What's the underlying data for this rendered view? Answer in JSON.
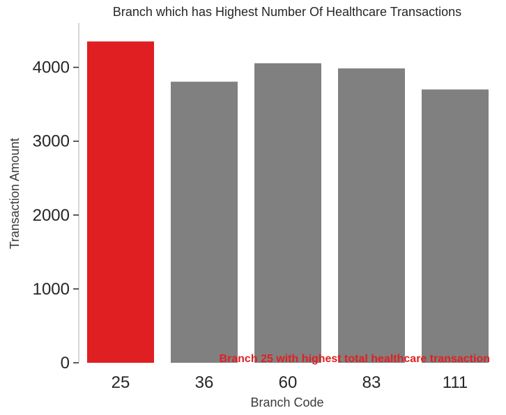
{
  "chart_data": {
    "type": "bar",
    "title": "Branch which has Highest Number Of Healthcare Transactions",
    "xlabel": "Branch Code",
    "ylabel": "Transaction Amount",
    "categories": [
      "25",
      "36",
      "60",
      "83",
      "111"
    ],
    "values": [
      4350,
      3805,
      4055,
      3985,
      3700
    ],
    "highlight_index": 0,
    "colors": {
      "highlight": "#e01f22",
      "default": "#808080",
      "axis": "#c8c8c8",
      "annotation": "#e01f22"
    },
    "ylim": [
      0,
      4600
    ],
    "yticks": [
      0,
      1000,
      2000,
      3000,
      4000
    ],
    "ytick_labels": [
      "0",
      "1000",
      "2000",
      "3000",
      "4000"
    ],
    "grid": false,
    "annotation": "Branch 25 with highest total healthcare transaction"
  }
}
